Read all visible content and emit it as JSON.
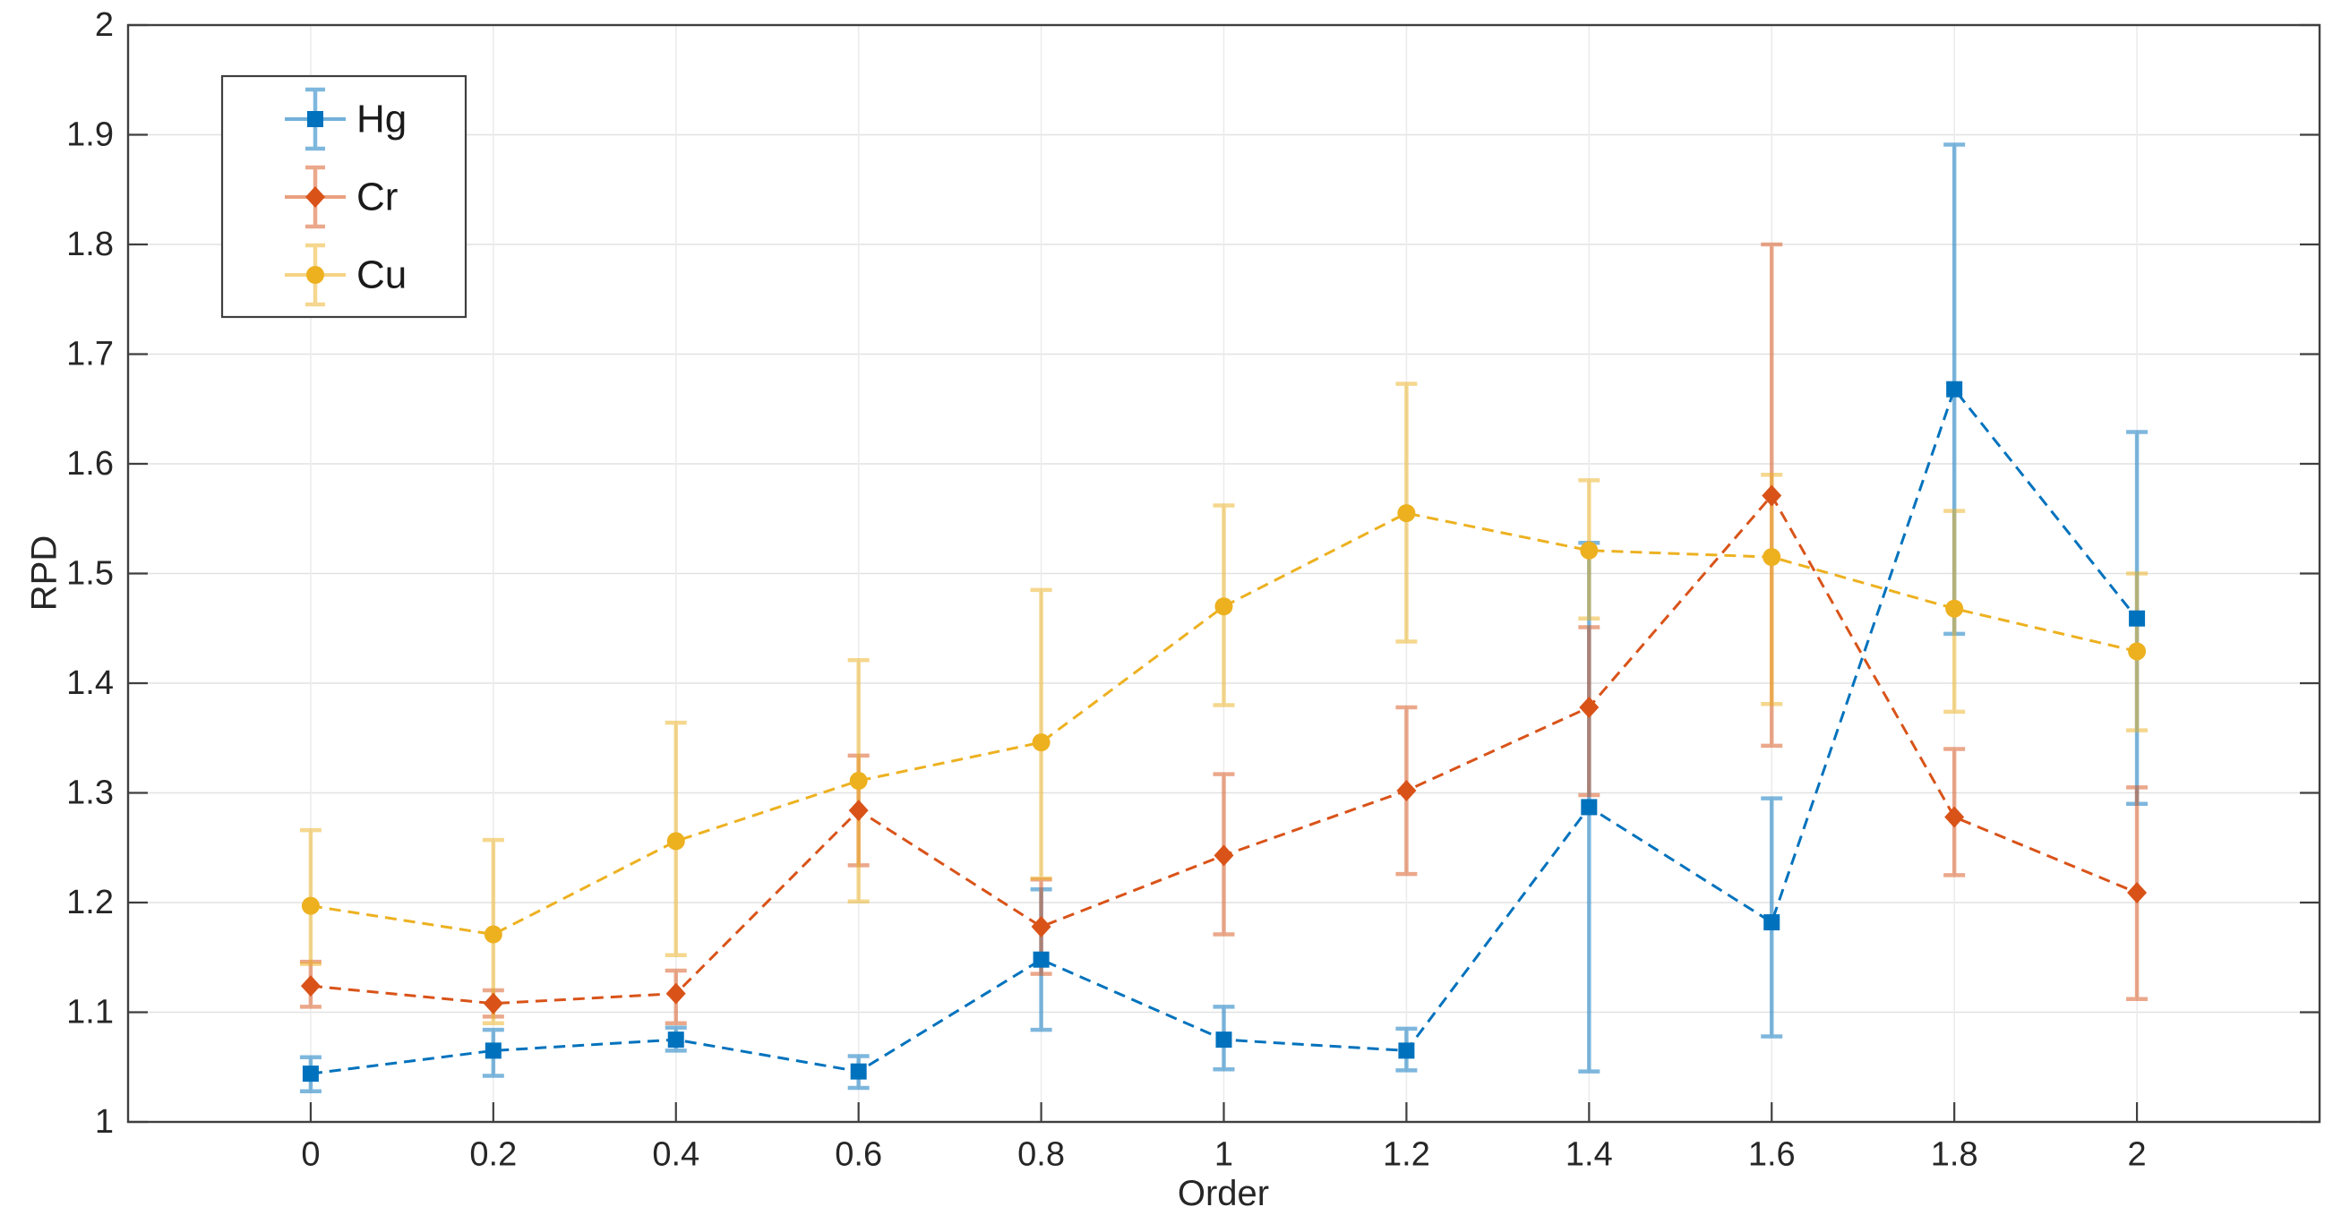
{
  "figure": {
    "background": "#ffffff",
    "axis_color": "#3f3f3f",
    "grid_color_h": "#e2e2e2",
    "grid_color_v": "#ececec",
    "text_color": "#262626",
    "legend_border_color": "#3f3f3f"
  },
  "chart_data": {
    "type": "line",
    "subtype": "errorbar-line",
    "title": "",
    "xlabel": "Order",
    "ylabel": "RPD",
    "xlim": [
      -0.2,
      2.2
    ],
    "ylim": [
      1,
      2
    ],
    "grid": "on",
    "legend_position": "top-left",
    "x": [
      0,
      0.2,
      0.4,
      0.6,
      0.8,
      1,
      1.2,
      1.4,
      1.6,
      1.8,
      2
    ],
    "x_tick_labels": [
      "0",
      "0.2",
      "0.4",
      "0.6",
      "0.8",
      "1",
      "1.2",
      "1.4",
      "1.6",
      "1.8",
      "2"
    ],
    "y_ticks": [
      1,
      1.1,
      1.2,
      1.3,
      1.4,
      1.5,
      1.6,
      1.7,
      1.8,
      1.9,
      2
    ],
    "y_tick_labels": [
      "1",
      "1.1",
      "1.2",
      "1.3",
      "1.4",
      "1.5",
      "1.6",
      "1.7",
      "1.8",
      "1.9",
      "2"
    ],
    "series": [
      {
        "name": "Hg",
        "color": "#0072BD",
        "marker": "square",
        "y": [
          1.044,
          1.065,
          1.075,
          1.046,
          1.148,
          1.075,
          1.065,
          1.287,
          1.182,
          1.668,
          1.459
        ],
        "err_low": [
          1.028,
          1.042,
          1.065,
          1.031,
          1.084,
          1.048,
          1.047,
          1.046,
          1.078,
          1.445,
          1.29
        ],
        "err_high": [
          1.059,
          1.084,
          1.086,
          1.06,
          1.212,
          1.105,
          1.085,
          1.528,
          1.295,
          1.891,
          1.629
        ]
      },
      {
        "name": "Cr",
        "color": "#D95319",
        "marker": "diamond",
        "y": [
          1.124,
          1.108,
          1.117,
          1.284,
          1.178,
          1.243,
          1.302,
          1.378,
          1.571,
          1.278,
          1.209
        ],
        "err_low": [
          1.105,
          1.096,
          1.09,
          1.234,
          1.135,
          1.171,
          1.226,
          1.298,
          1.343,
          1.225,
          1.112
        ],
        "err_high": [
          1.146,
          1.12,
          1.138,
          1.334,
          1.221,
          1.317,
          1.378,
          1.451,
          1.8,
          1.34,
          1.305
        ]
      },
      {
        "name": "Cu",
        "color": "#EDB120",
        "marker": "circle",
        "y": [
          1.197,
          1.171,
          1.256,
          1.311,
          1.346,
          1.47,
          1.555,
          1.521,
          1.515,
          1.468,
          1.429
        ],
        "err_low": [
          1.144,
          1.09,
          1.152,
          1.201,
          1.222,
          1.38,
          1.438,
          1.459,
          1.381,
          1.374,
          1.357
        ],
        "err_high": [
          1.266,
          1.257,
          1.364,
          1.421,
          1.485,
          1.562,
          1.673,
          1.585,
          1.59,
          1.557,
          1.5
        ]
      }
    ]
  }
}
